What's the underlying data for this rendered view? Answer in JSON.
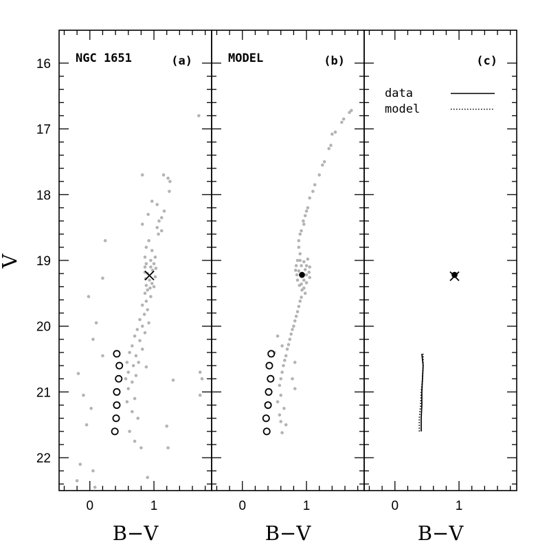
{
  "chart_data": {
    "type": "scatter",
    "ylabel": "V",
    "xlabel": "B−V",
    "xlim": [
      -0.48,
      1.9
    ],
    "ylim": [
      22.5,
      15.5
    ],
    "x_ticks": [
      0,
      1
    ],
    "x_ticklabels": [
      "0",
      "1"
    ],
    "y_ticks": [
      16,
      17,
      18,
      19,
      20,
      21,
      22
    ],
    "y_ticklabels": [
      "16",
      "17",
      "18",
      "19",
      "20",
      "21",
      "22"
    ],
    "colors": {
      "stars": "#b3b3b3",
      "markers": "#000000"
    },
    "panels": [
      {
        "title": "NGC 1651",
        "label": "(a)",
        "clump_marker": "cross",
        "clump": {
          "x": 0.93,
          "y": 19.23
        },
        "ridge_marker": "open-circle",
        "ridge_points": [
          {
            "x": 0.42,
            "y": 20.42
          },
          {
            "x": 0.46,
            "y": 20.6
          },
          {
            "x": 0.45,
            "y": 20.8
          },
          {
            "x": 0.42,
            "y": 21.0
          },
          {
            "x": 0.42,
            "y": 21.2
          },
          {
            "x": 0.41,
            "y": 21.4
          },
          {
            "x": 0.39,
            "y": 21.6
          }
        ],
        "stars": [
          [
            1.7,
            16.8
          ],
          [
            0.82,
            17.7
          ],
          [
            1.15,
            17.7
          ],
          [
            1.22,
            17.75
          ],
          [
            1.25,
            17.8
          ],
          [
            1.24,
            17.95
          ],
          [
            0.97,
            18.1
          ],
          [
            1.05,
            18.15
          ],
          [
            1.16,
            18.25
          ],
          [
            0.91,
            18.3
          ],
          [
            1.12,
            18.35
          ],
          [
            1.08,
            18.4
          ],
          [
            0.82,
            18.45
          ],
          [
            1.05,
            18.5
          ],
          [
            1.12,
            18.55
          ],
          [
            1.07,
            18.6
          ],
          [
            0.24,
            18.7
          ],
          [
            0.92,
            18.7
          ],
          [
            0.88,
            18.8
          ],
          [
            0.97,
            18.85
          ],
          [
            0.86,
            18.95
          ],
          [
            1.02,
            18.95
          ],
          [
            0.95,
            19.0
          ],
          [
            0.88,
            19.05
          ],
          [
            1.0,
            19.05
          ],
          [
            0.86,
            19.1
          ],
          [
            0.95,
            19.1
          ],
          [
            1.03,
            19.12
          ],
          [
            0.86,
            19.18
          ],
          [
            0.9,
            19.2
          ],
          [
            0.98,
            19.15
          ],
          [
            1.02,
            19.25
          ],
          [
            0.87,
            19.28
          ],
          [
            0.93,
            19.3
          ],
          [
            0.97,
            19.35
          ],
          [
            0.88,
            19.38
          ],
          [
            1.0,
            19.4
          ],
          [
            0.9,
            19.45
          ],
          [
            0.94,
            19.42
          ],
          [
            0.86,
            19.5
          ],
          [
            0.2,
            19.27
          ],
          [
            -0.02,
            19.55
          ],
          [
            0.95,
            19.55
          ],
          [
            0.88,
            19.62
          ],
          [
            0.82,
            19.68
          ],
          [
            0.9,
            19.75
          ],
          [
            0.85,
            19.82
          ],
          [
            0.78,
            19.9
          ],
          [
            0.92,
            19.95
          ],
          [
            0.1,
            19.95
          ],
          [
            0.82,
            20.0
          ],
          [
            0.74,
            20.05
          ],
          [
            0.86,
            20.1
          ],
          [
            0.7,
            20.15
          ],
          [
            0.05,
            20.2
          ],
          [
            0.78,
            20.22
          ],
          [
            0.66,
            20.3
          ],
          [
            0.82,
            20.35
          ],
          [
            0.62,
            20.4
          ],
          [
            0.72,
            20.45
          ],
          [
            0.2,
            20.45
          ],
          [
            0.58,
            20.55
          ],
          [
            0.76,
            20.55
          ],
          [
            0.68,
            20.6
          ],
          [
            0.88,
            20.62
          ],
          [
            0.6,
            20.7
          ],
          [
            -0.18,
            20.72
          ],
          [
            0.72,
            20.75
          ],
          [
            1.72,
            20.7
          ],
          [
            0.56,
            20.8
          ],
          [
            0.66,
            20.85
          ],
          [
            1.3,
            20.82
          ],
          [
            1.75,
            20.8
          ],
          [
            0.6,
            20.95
          ],
          [
            -0.1,
            21.05
          ],
          [
            1.72,
            21.05
          ],
          [
            0.7,
            21.1
          ],
          [
            0.58,
            21.15
          ],
          [
            0.02,
            21.25
          ],
          [
            0.66,
            21.3
          ],
          [
            0.75,
            21.4
          ],
          [
            -0.05,
            21.5
          ],
          [
            1.2,
            21.52
          ],
          [
            0.62,
            21.6
          ],
          [
            0.7,
            21.75
          ],
          [
            0.8,
            21.85
          ],
          [
            1.22,
            21.85
          ],
          [
            -0.15,
            22.1
          ],
          [
            0.05,
            22.2
          ],
          [
            -0.2,
            22.35
          ],
          [
            0.9,
            22.3
          ],
          [
            0.08,
            22.45
          ]
        ]
      },
      {
        "title": "MODEL",
        "label": "(b)",
        "clump_marker": "filled-circle",
        "clump": {
          "x": 0.93,
          "y": 19.22
        },
        "ridge_marker": "open-circle",
        "ridge_points": [
          {
            "x": 0.45,
            "y": 20.42
          },
          {
            "x": 0.42,
            "y": 20.6
          },
          {
            "x": 0.44,
            "y": 20.8
          },
          {
            "x": 0.41,
            "y": 21.0
          },
          {
            "x": 0.4,
            "y": 21.2
          },
          {
            "x": 0.37,
            "y": 21.4
          },
          {
            "x": 0.38,
            "y": 21.6
          }
        ],
        "stars": [
          [
            1.7,
            16.72
          ],
          [
            1.67,
            16.75
          ],
          [
            1.58,
            16.85
          ],
          [
            1.55,
            16.9
          ],
          [
            1.45,
            17.05
          ],
          [
            1.4,
            17.08
          ],
          [
            1.38,
            17.25
          ],
          [
            1.35,
            17.3
          ],
          [
            1.28,
            17.5
          ],
          [
            1.25,
            17.55
          ],
          [
            1.2,
            17.7
          ],
          [
            1.13,
            17.85
          ],
          [
            1.1,
            17.95
          ],
          [
            1.05,
            18.05
          ],
          [
            1.02,
            18.2
          ],
          [
            1.0,
            18.25
          ],
          [
            0.98,
            18.32
          ],
          [
            0.95,
            18.4
          ],
          [
            0.96,
            18.45
          ],
          [
            0.92,
            18.55
          ],
          [
            0.9,
            18.6
          ],
          [
            0.88,
            18.7
          ],
          [
            0.88,
            18.8
          ],
          [
            0.9,
            18.9
          ],
          [
            0.86,
            19.0
          ],
          [
            0.9,
            19.0
          ],
          [
            0.96,
            19.02
          ],
          [
            1.02,
            18.98
          ],
          [
            0.84,
            19.08
          ],
          [
            0.92,
            19.08
          ],
          [
            1.0,
            19.08
          ],
          [
            1.05,
            19.1
          ],
          [
            0.83,
            19.15
          ],
          [
            0.88,
            19.16
          ],
          [
            0.98,
            19.14
          ],
          [
            1.04,
            19.18
          ],
          [
            0.85,
            19.22
          ],
          [
            1.0,
            19.22
          ],
          [
            1.05,
            19.26
          ],
          [
            0.86,
            19.3
          ],
          [
            0.96,
            19.3
          ],
          [
            0.92,
            19.36
          ],
          [
            1.0,
            19.34
          ],
          [
            0.89,
            19.38
          ],
          [
            0.96,
            19.42
          ],
          [
            0.93,
            19.45
          ],
          [
            0.98,
            19.5
          ],
          [
            0.92,
            19.56
          ],
          [
            0.9,
            19.62
          ],
          [
            0.88,
            19.7
          ],
          [
            0.86,
            19.78
          ],
          [
            0.84,
            19.85
          ],
          [
            0.82,
            19.92
          ],
          [
            0.8,
            20.0
          ],
          [
            0.78,
            20.05
          ],
          [
            0.76,
            20.12
          ],
          [
            0.55,
            20.15
          ],
          [
            0.74,
            20.2
          ],
          [
            0.72,
            20.28
          ],
          [
            0.62,
            20.3
          ],
          [
            0.7,
            20.35
          ],
          [
            0.68,
            20.45
          ],
          [
            0.5,
            20.4
          ],
          [
            0.66,
            20.52
          ],
          [
            0.64,
            20.6
          ],
          [
            0.82,
            20.55
          ],
          [
            0.62,
            20.7
          ],
          [
            0.6,
            20.8
          ],
          [
            0.78,
            20.8
          ],
          [
            0.58,
            20.9
          ],
          [
            0.82,
            20.95
          ],
          [
            0.6,
            21.05
          ],
          [
            0.55,
            21.15
          ],
          [
            0.65,
            21.25
          ],
          [
            0.58,
            21.35
          ],
          [
            0.6,
            21.45
          ],
          [
            0.68,
            21.5
          ],
          [
            0.62,
            21.62
          ]
        ]
      },
      {
        "title": "",
        "label": "(c)",
        "legend": [
          {
            "name": "data",
            "style": "solid"
          },
          {
            "name": "model",
            "style": "dotted"
          }
        ],
        "clump_data": {
          "x": 0.93,
          "y": 19.24,
          "marker": "cross"
        },
        "clump_model": {
          "x": 0.93,
          "y": 19.22,
          "marker": "filled-circle"
        },
        "lines": [
          {
            "name": "data",
            "style": "solid",
            "points": [
              [
                0.41,
                21.6
              ],
              [
                0.41,
                21.4
              ],
              [
                0.42,
                21.2
              ],
              [
                0.42,
                21.0
              ],
              [
                0.43,
                20.8
              ],
              [
                0.44,
                20.6
              ],
              [
                0.42,
                20.42
              ]
            ]
          },
          {
            "name": "model",
            "style": "dotted",
            "points": [
              [
                0.38,
                21.6
              ],
              [
                0.38,
                21.4
              ],
              [
                0.4,
                21.2
              ],
              [
                0.41,
                21.0
              ],
              [
                0.43,
                20.8
              ],
              [
                0.44,
                20.6
              ],
              [
                0.44,
                20.42
              ]
            ]
          }
        ]
      }
    ]
  }
}
